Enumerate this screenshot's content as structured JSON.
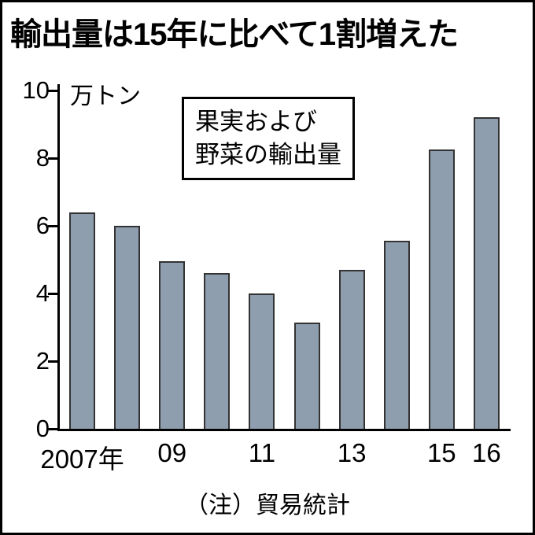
{
  "title": "輸出量は15年に比べて1割増えた",
  "y_axis": {
    "unit": "万トン"
  },
  "annotation": [
    "果実および",
    "野菜の輸出量"
  ],
  "footnote": "（注）貿易統計",
  "colors": {
    "bar_fill": "#8e9eae",
    "bar_border": "#333333",
    "axis": "#000000",
    "background": "#ffffff"
  },
  "chart_data": {
    "type": "bar",
    "title": "果実および野菜の輸出量",
    "categories": [
      "2007",
      "2008",
      "2009",
      "2010",
      "2011",
      "2012",
      "2013",
      "2014",
      "2015",
      "2016"
    ],
    "values": [
      6.4,
      6.0,
      4.95,
      4.6,
      4.0,
      3.15,
      4.7,
      5.55,
      8.25,
      9.2
    ],
    "x_tick_labels": [
      "2007年",
      "",
      "09",
      "",
      "11",
      "",
      "13",
      "",
      "15",
      "16"
    ],
    "xlabel": "",
    "ylabel": "万トン",
    "ylim": [
      0,
      10
    ],
    "yticks": [
      0,
      2,
      4,
      6,
      8,
      10
    ],
    "grid": false,
    "legend": "none"
  }
}
